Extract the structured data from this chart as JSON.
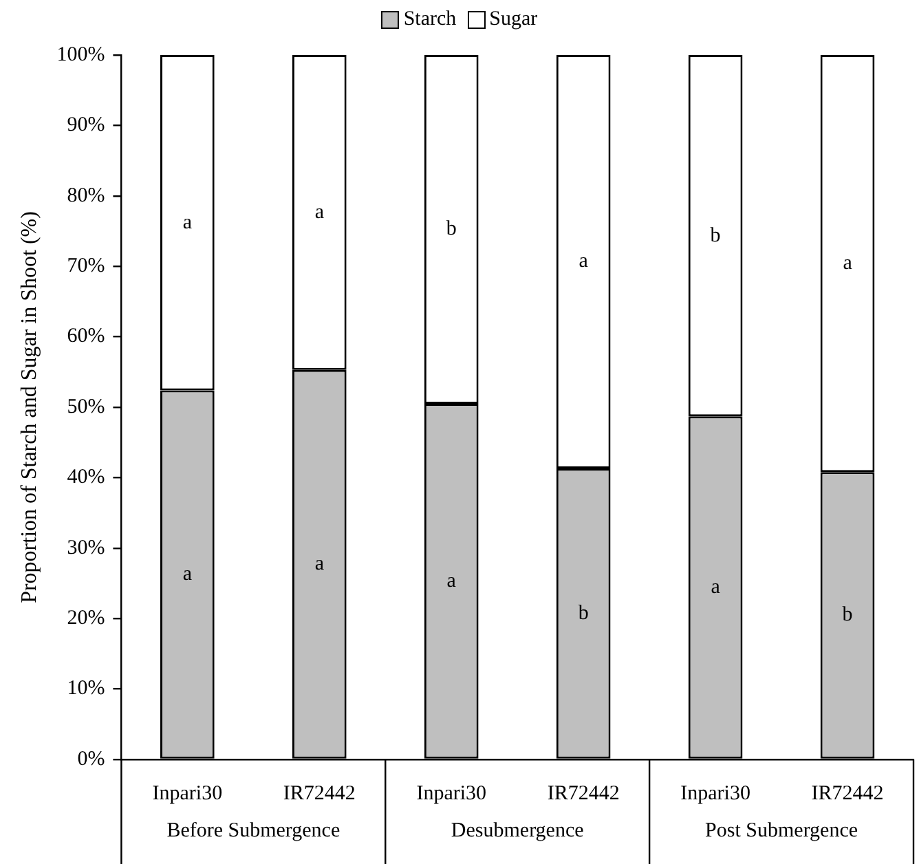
{
  "chart_data": {
    "type": "bar",
    "stacked": true,
    "ylabel": "Proportion of Starch and Sugar in Shoot (%)",
    "categories": [
      "Inpari30",
      "IR72442",
      "Inpari30",
      "IR72442",
      "Inpari30",
      "IR72442"
    ],
    "series": [
      {
        "name": "Starch",
        "color": "#bfbfbf",
        "values": [
          52.4,
          55.3,
          50.5,
          41.3,
          48.7,
          40.8
        ],
        "value_labels": [
          "a",
          "a",
          "a",
          "b",
          "a",
          "b"
        ]
      },
      {
        "name": "Sugar",
        "color": "#ffffff",
        "values": [
          47.6,
          44.7,
          49.5,
          58.7,
          51.3,
          59.2
        ],
        "value_labels": [
          "a",
          "a",
          "b",
          "a",
          "b",
          "a"
        ]
      }
    ],
    "ylim": [
      0,
      100
    ],
    "yticks": [
      {
        "value": 0,
        "label": "0%"
      },
      {
        "value": 10,
        "label": "10%"
      },
      {
        "value": 20,
        "label": "20%"
      },
      {
        "value": 30,
        "label": "30%"
      },
      {
        "value": 40,
        "label": "40%"
      },
      {
        "value": 50,
        "label": "50%"
      },
      {
        "value": 60,
        "label": "60%"
      },
      {
        "value": 70,
        "label": "70%"
      },
      {
        "value": 80,
        "label": "80%"
      },
      {
        "value": 90,
        "label": "90%"
      },
      {
        "value": 100,
        "label": "100%"
      }
    ],
    "grid": false,
    "legend": "top",
    "annotations": [
      "Before Submergence",
      "Desubmergence",
      "Post Submergence"
    ]
  }
}
